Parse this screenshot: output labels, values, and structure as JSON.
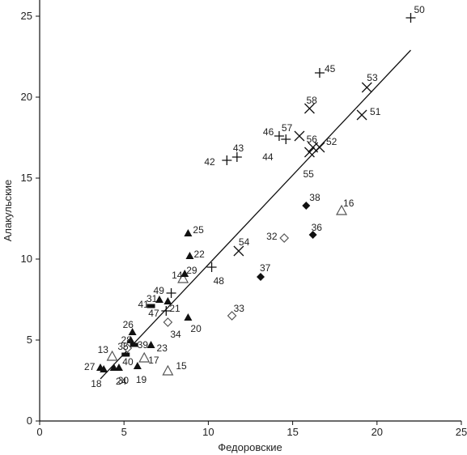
{
  "chart_data": {
    "type": "scatter",
    "xlabel": "Федоровские",
    "ylabel": "Алакульские",
    "xlim": [
      0,
      25
    ],
    "ylim": [
      0,
      25
    ],
    "x_ticks": [
      "0",
      "5",
      "10",
      "15",
      "20",
      "25"
    ],
    "y_ticks": [
      "0",
      "5",
      "10",
      "15",
      "20",
      "25"
    ],
    "grid": false,
    "legend": "none",
    "trend_line": {
      "x": [
        3.6,
        22.0
      ],
      "y": [
        2.6,
        22.9
      ]
    },
    "colors": {
      "black": "#111111",
      "gray": "#444444",
      "open_marker": "#555555"
    },
    "points": [
      {
        "id": "13",
        "x": 4.3,
        "y": 4.0,
        "marker": "triangle-open"
      },
      {
        "id": "14",
        "x": 8.5,
        "y": 8.8,
        "marker": "triangle-open"
      },
      {
        "id": "15",
        "x": 7.6,
        "y": 3.1,
        "marker": "triangle-open"
      },
      {
        "id": "16",
        "x": 17.9,
        "y": 13.0,
        "marker": "triangle-open"
      },
      {
        "id": "17",
        "x": 6.2,
        "y": 3.9,
        "marker": "triangle-open"
      },
      {
        "id": "18",
        "x": 3.8,
        "y": 3.2,
        "marker": "triangle"
      },
      {
        "id": "19",
        "x": 5.8,
        "y": 3.4,
        "marker": "triangle"
      },
      {
        "id": "20",
        "x": 8.8,
        "y": 6.4,
        "marker": "triangle"
      },
      {
        "id": "21",
        "x": 7.6,
        "y": 7.4,
        "marker": "triangle"
      },
      {
        "id": "22",
        "x": 8.9,
        "y": 10.2,
        "marker": "triangle"
      },
      {
        "id": "23",
        "x": 6.6,
        "y": 4.7,
        "marker": "triangle"
      },
      {
        "id": "24",
        "x": 4.7,
        "y": 3.3,
        "marker": "triangle"
      },
      {
        "id": "25",
        "x": 8.8,
        "y": 11.6,
        "marker": "triangle"
      },
      {
        "id": "26",
        "x": 5.5,
        "y": 5.5,
        "marker": "triangle"
      },
      {
        "id": "27",
        "x": 3.6,
        "y": 3.3,
        "marker": "triangle"
      },
      {
        "id": "28",
        "x": 5.4,
        "y": 5.0,
        "marker": "triangle"
      },
      {
        "id": "29",
        "x": 8.6,
        "y": 9.1,
        "marker": "triangle"
      },
      {
        "id": "30",
        "x": 4.4,
        "y": 3.3,
        "marker": "triangle"
      },
      {
        "id": "31",
        "x": 7.1,
        "y": 7.5,
        "marker": "triangle"
      },
      {
        "id": "32",
        "x": 14.5,
        "y": 11.3,
        "marker": "diamond-open"
      },
      {
        "id": "33",
        "x": 11.4,
        "y": 6.5,
        "marker": "diamond-open"
      },
      {
        "id": "34",
        "x": 7.6,
        "y": 6.1,
        "marker": "diamond-open"
      },
      {
        "id": "35",
        "x": 5.2,
        "y": 4.5,
        "marker": "diamond-open"
      },
      {
        "id": "36",
        "x": 16.2,
        "y": 11.5,
        "marker": "diamond"
      },
      {
        "id": "37",
        "x": 13.1,
        "y": 8.9,
        "marker": "diamond"
      },
      {
        "id": "38",
        "x": 15.8,
        "y": 13.3,
        "marker": "diamond"
      },
      {
        "id": "39",
        "x": 5.6,
        "y": 4.7,
        "marker": "bar"
      },
      {
        "id": "40",
        "x": 5.1,
        "y": 4.1,
        "marker": "bar"
      },
      {
        "id": "41",
        "x": 6.6,
        "y": 7.1,
        "marker": "bar"
      },
      {
        "id": "42",
        "x": 11.1,
        "y": 16.1,
        "marker": "plus"
      },
      {
        "id": "43",
        "x": 11.7,
        "y": 16.3,
        "marker": "plus"
      },
      {
        "id": "44",
        "x": 14.6,
        "y": 17.4,
        "marker": "plus"
      },
      {
        "id": "45",
        "x": 16.6,
        "y": 21.5,
        "marker": "plus"
      },
      {
        "id": "46",
        "x": 14.2,
        "y": 17.6,
        "marker": "plus"
      },
      {
        "id": "47",
        "x": 7.5,
        "y": 6.8,
        "marker": "plus"
      },
      {
        "id": "48",
        "x": 10.2,
        "y": 9.5,
        "marker": "plus"
      },
      {
        "id": "49",
        "x": 7.8,
        "y": 7.9,
        "marker": "plus"
      },
      {
        "id": "50",
        "x": 22.0,
        "y": 24.9,
        "marker": "plus"
      },
      {
        "id": "51",
        "x": 19.1,
        "y": 18.9,
        "marker": "cross"
      },
      {
        "id": "52",
        "x": 16.6,
        "y": 16.9,
        "marker": "cross"
      },
      {
        "id": "53",
        "x": 19.4,
        "y": 20.6,
        "marker": "cross"
      },
      {
        "id": "54",
        "x": 11.8,
        "y": 10.5,
        "marker": "cross"
      },
      {
        "id": "55",
        "x": 16.0,
        "y": 16.6,
        "marker": "cross"
      },
      {
        "id": "56",
        "x": 16.2,
        "y": 16.9,
        "marker": "cross"
      },
      {
        "id": "57",
        "x": 15.4,
        "y": 17.6,
        "marker": "cross"
      },
      {
        "id": "58",
        "x": 16.0,
        "y": 19.3,
        "marker": "cross"
      }
    ]
  }
}
